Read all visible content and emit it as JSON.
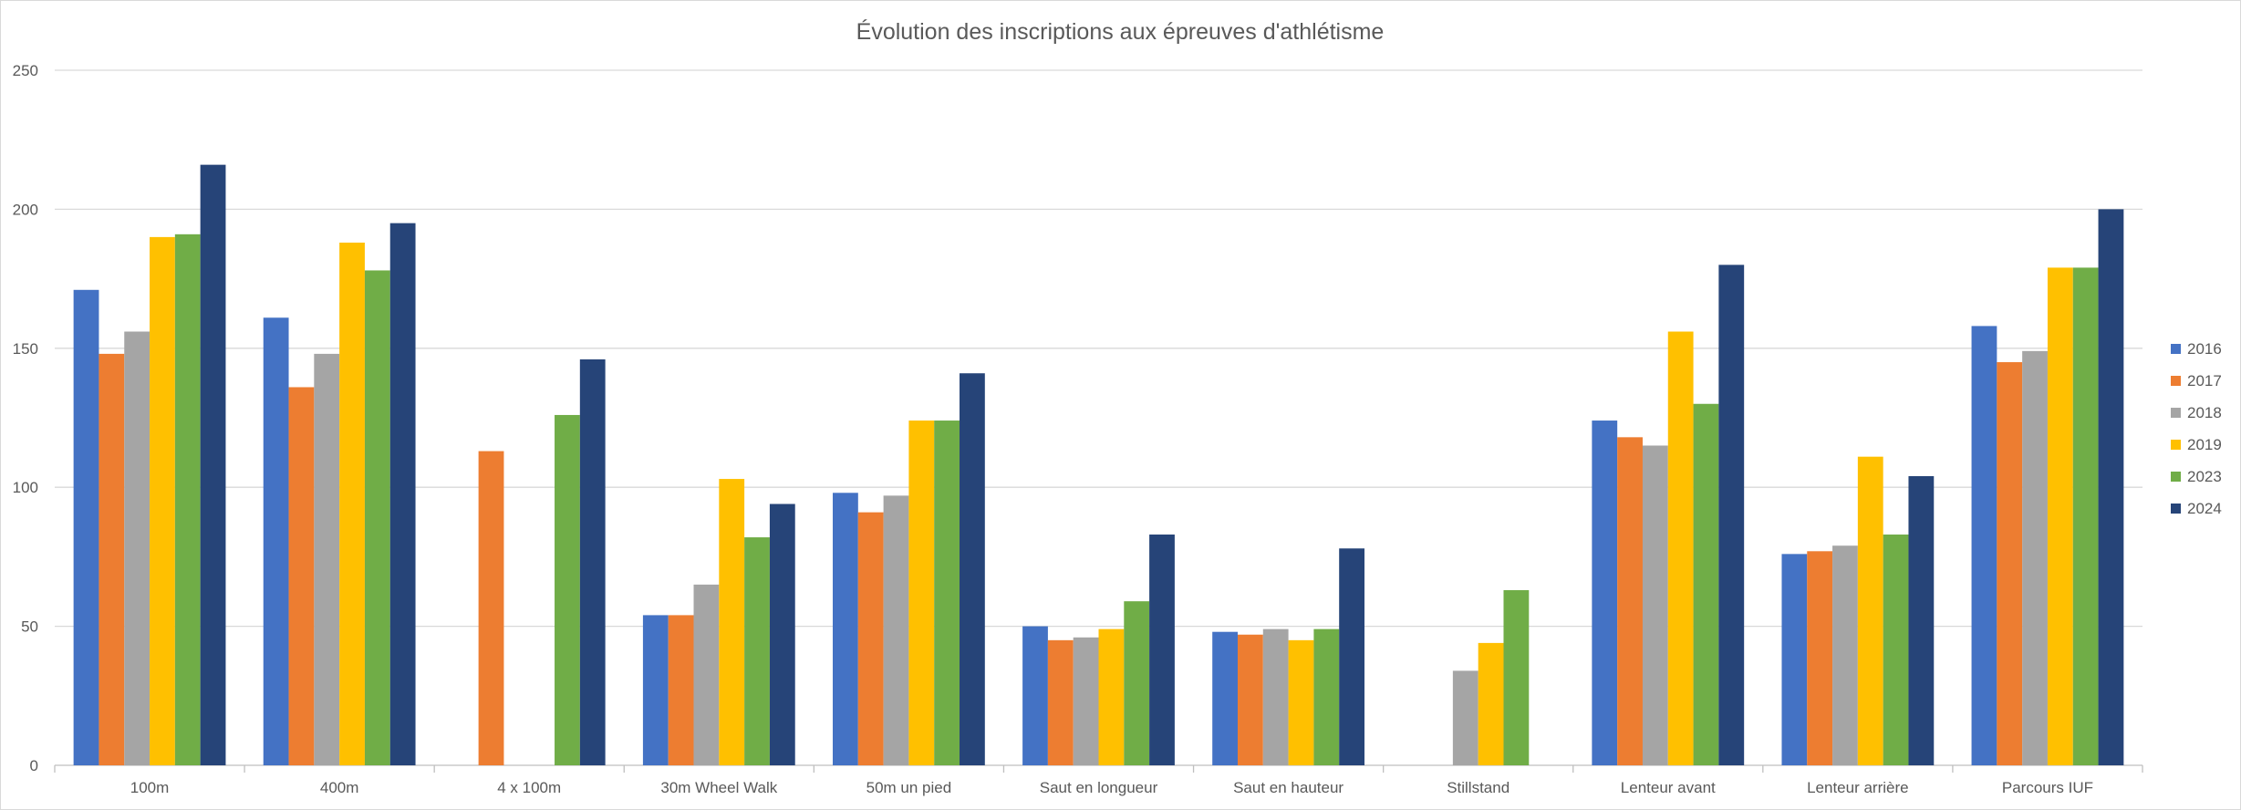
{
  "chart_data": {
    "type": "bar",
    "title": "Évolution des inscriptions aux épreuves d'athlétisme",
    "xlabel": "",
    "ylabel": "",
    "ylim": [
      0,
      250
    ],
    "yticks": [
      0,
      50,
      100,
      150,
      200,
      250
    ],
    "grid": true,
    "legend_position": "right",
    "categories": [
      "100m",
      "400m",
      "4 x 100m",
      "30m Wheel Walk",
      "50m un pied",
      "Saut en longueur",
      "Saut en hauteur",
      "Stillstand",
      "Lenteur avant",
      "Lenteur arrière",
      "Parcours IUF"
    ],
    "series": [
      {
        "name": "2016",
        "color": "#4472c4",
        "values": [
          171,
          161,
          null,
          54,
          98,
          50,
          48,
          null,
          124,
          76,
          158
        ]
      },
      {
        "name": "2017",
        "color": "#ed7d31",
        "values": [
          148,
          136,
          113,
          54,
          91,
          45,
          47,
          null,
          118,
          77,
          145
        ]
      },
      {
        "name": "2018",
        "color": "#a5a5a5",
        "values": [
          156,
          148,
          null,
          65,
          97,
          46,
          49,
          34,
          115,
          79,
          149
        ]
      },
      {
        "name": "2019",
        "color": "#ffc000",
        "values": [
          190,
          188,
          null,
          103,
          124,
          49,
          45,
          44,
          156,
          111,
          179
        ]
      },
      {
        "name": "2023",
        "color": "#70ad47",
        "values": [
          191,
          178,
          126,
          82,
          124,
          59,
          49,
          63,
          130,
          83,
          179
        ]
      },
      {
        "name": "2024",
        "color": "#264478",
        "values": [
          216,
          195,
          146,
          94,
          141,
          83,
          78,
          null,
          180,
          104,
          200
        ]
      }
    ]
  }
}
